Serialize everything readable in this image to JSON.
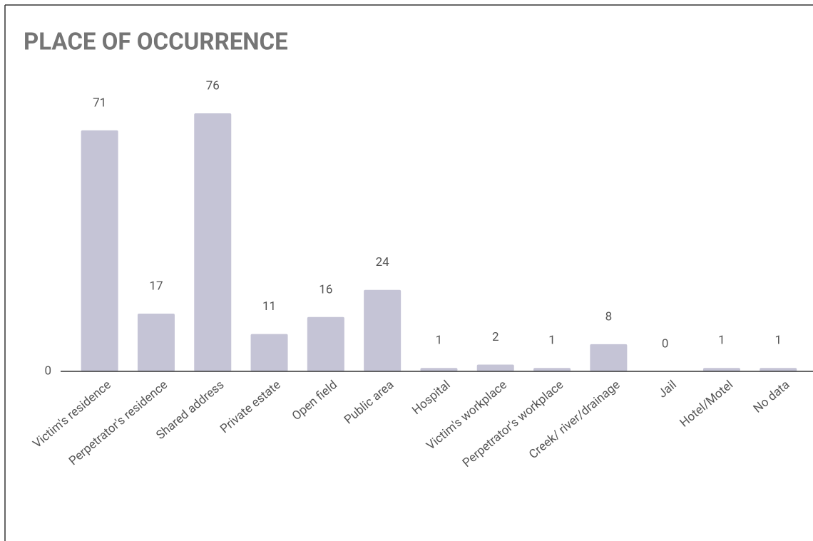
{
  "chart_data": {
    "type": "bar",
    "title": "PLACE OF OCCURRENCE",
    "categories": [
      "Victim's residence",
      "Perpetrator's residence",
      "Shared address",
      "Private estate",
      "Open field",
      "Public area",
      "Hospital",
      "Victim's workplace",
      "Perpetrator's workplace",
      "Creek/ river/drainage",
      "Jail",
      "Hotel/Motel",
      "No data"
    ],
    "values": [
      71,
      17,
      76,
      11,
      16,
      24,
      1,
      2,
      1,
      8,
      0,
      1,
      1
    ],
    "color": "#c5c4d6",
    "ylim": [
      0,
      80
    ],
    "yticks": [
      0
    ],
    "grid": false
  }
}
